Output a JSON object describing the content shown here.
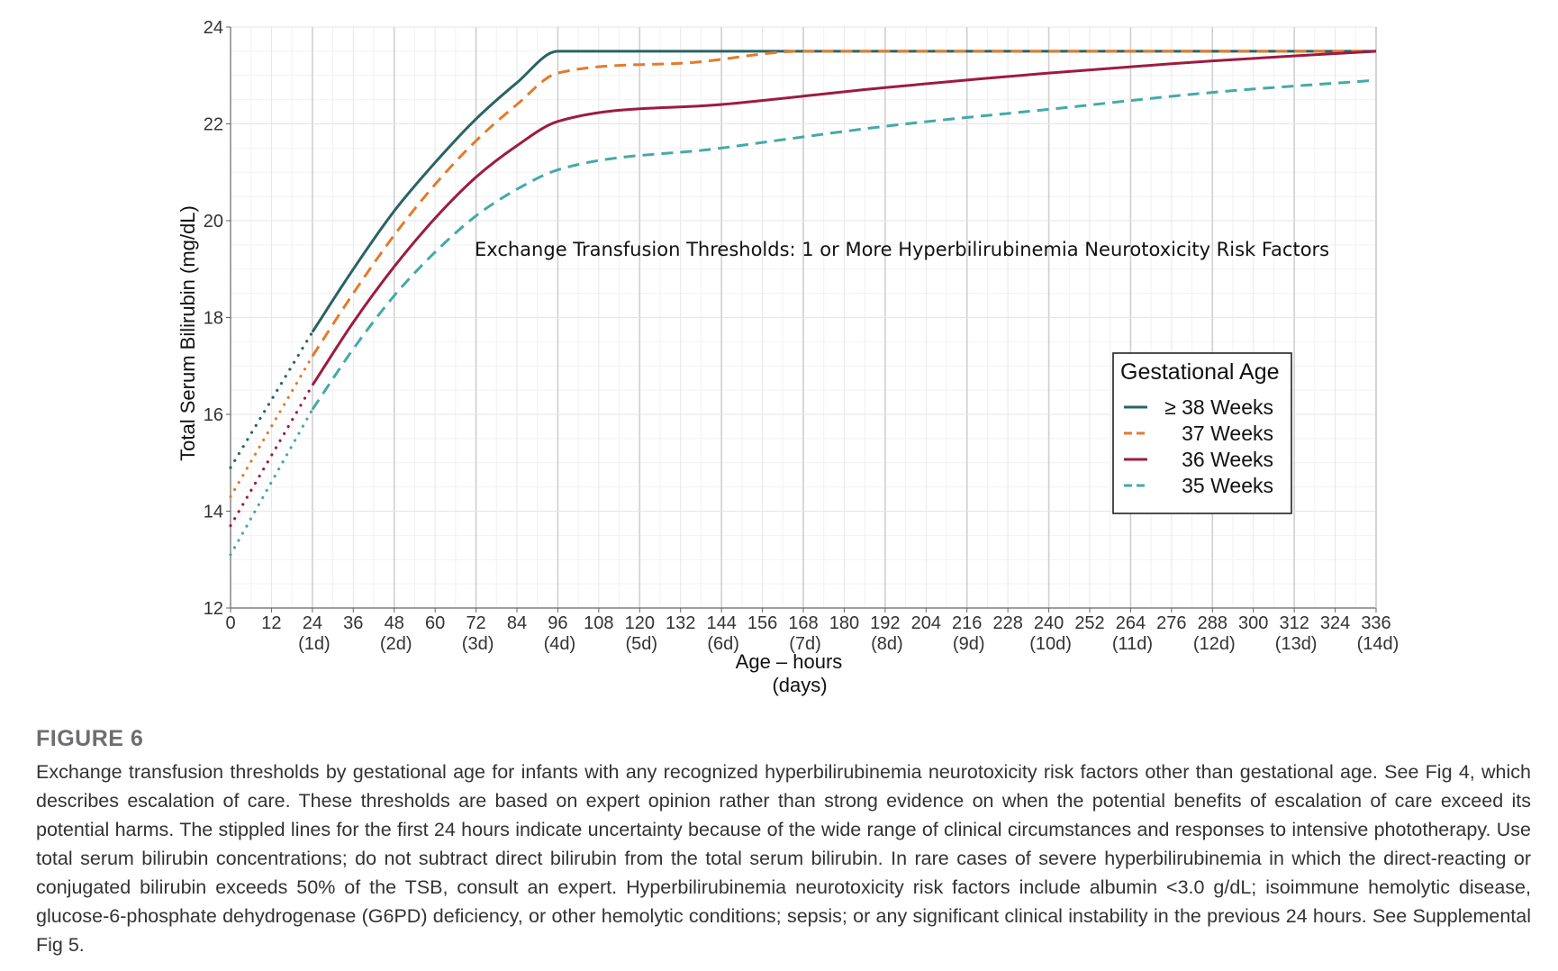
{
  "chart_data": {
    "type": "line",
    "title": "",
    "annotation": "Exchange Transfusion Thresholds:  1 or More Hyperbilirubinemia Neurotoxicity Risk Factors",
    "xlabel_line1": "Age – hours",
    "xlabel_line2": "(days)",
    "ylabel": "Total Serum Bilirubin (mg/dL)",
    "xlim": [
      0,
      336
    ],
    "ylim": [
      12,
      24
    ],
    "x_ticks": [
      0,
      12,
      24,
      36,
      48,
      60,
      72,
      84,
      96,
      108,
      120,
      132,
      144,
      156,
      168,
      180,
      192,
      204,
      216,
      228,
      240,
      252,
      264,
      276,
      288,
      300,
      312,
      324,
      336
    ],
    "x_tick_labels": [
      "0",
      "12",
      "24",
      "36",
      "48",
      "60",
      "72",
      "84",
      "96",
      "108",
      "120",
      "132",
      "144",
      "156",
      "168",
      "180",
      "192",
      "204",
      "216",
      "228",
      "240",
      "252",
      "264",
      "276",
      "288",
      "300",
      "312",
      "324",
      "336"
    ],
    "x_day_ticks": [
      24,
      48,
      72,
      96,
      120,
      144,
      168,
      192,
      216,
      240,
      264,
      288,
      312,
      336
    ],
    "x_day_labels": [
      "(1d)",
      "(2d)",
      "(3d)",
      "(4d)",
      "(5d)",
      "(6d)",
      "(7d)",
      "(8d)",
      "(9d)",
      "(10d)",
      "(11d)",
      "(12d)",
      "(13d)",
      "(14d)"
    ],
    "y_ticks": [
      12,
      14,
      16,
      18,
      20,
      22,
      24
    ],
    "y_tick_labels": [
      "12",
      "14",
      "16",
      "18",
      "20",
      "22",
      "24"
    ],
    "grid": true,
    "legend": {
      "title": "Gestational Age",
      "position": "right-center"
    },
    "series": [
      {
        "name": "≥ 38 Weeks",
        "color": "#2a6363",
        "dash": "solid",
        "dotted_x": [
          0,
          24
        ],
        "dotted_y": [
          14.9,
          17.7
        ],
        "x": [
          24,
          36,
          48,
          60,
          72,
          84,
          96,
          336
        ],
        "y": [
          17.7,
          19.0,
          20.2,
          21.2,
          22.1,
          22.85,
          23.5,
          23.5
        ]
      },
      {
        "name": "37 Weeks",
        "color": "#e27b2c",
        "dash": "dashed",
        "dotted_x": [
          0,
          24
        ],
        "dotted_y": [
          14.3,
          17.2
        ],
        "x": [
          24,
          36,
          48,
          60,
          72,
          84,
          96,
          132,
          168,
          336
        ],
        "y": [
          17.2,
          18.5,
          19.7,
          20.75,
          21.65,
          22.4,
          23.05,
          23.25,
          23.5,
          23.5
        ]
      },
      {
        "name": "36 Weeks",
        "color": "#9e1b3f",
        "dash": "solid",
        "dotted_x": [
          0,
          24
        ],
        "dotted_y": [
          13.7,
          16.6
        ],
        "x": [
          24,
          36,
          48,
          60,
          72,
          84,
          96,
          144,
          192,
          240,
          288,
          336
        ],
        "y": [
          16.6,
          17.9,
          19.05,
          20.05,
          20.9,
          21.55,
          22.05,
          22.4,
          22.75,
          23.05,
          23.3,
          23.5
        ]
      },
      {
        "name": "35 Weeks",
        "color": "#45a9a9",
        "dash": "dashed",
        "dotted_x": [
          0,
          24
        ],
        "dotted_y": [
          13.1,
          16.1
        ],
        "x": [
          24,
          36,
          48,
          60,
          72,
          84,
          96,
          144,
          192,
          240,
          288,
          336
        ],
        "y": [
          16.1,
          17.35,
          18.45,
          19.35,
          20.1,
          20.65,
          21.05,
          21.5,
          21.95,
          22.3,
          22.65,
          22.9
        ]
      }
    ]
  },
  "caption": {
    "label": "FIGURE 6",
    "text": "Exchange transfusion thresholds by gestational age for infants with any recognized hyperbilirubinemia neurotoxicity risk factors other than gestational age. See Fig 4, which describes escalation of care. These thresholds are based on expert opinion rather than strong evidence on when the potential benefits of escalation of care exceed its potential harms. The stippled lines for the first 24 hours indicate uncertainty because of the wide range of clinical circumstances and responses to intensive phototherapy. Use total serum bilirubin concentrations; do not subtract direct bilirubin from the total serum bilirubin. In rare cases of severe hyperbilirubinemia in which the direct-reacting or conjugated bilirubin exceeds 50% of the TSB, consult an expert. Hyperbilirubinemia neurotoxicity risk factors include albumin <3.0 g/dL; isoimmune hemolytic disease, glucose-6-phosphate dehydrogenase (G6PD) deficiency, or other hemolytic conditions; sepsis; or any significant clinical instability in the previous 24 hours. See Supplemental Fig 5."
  }
}
